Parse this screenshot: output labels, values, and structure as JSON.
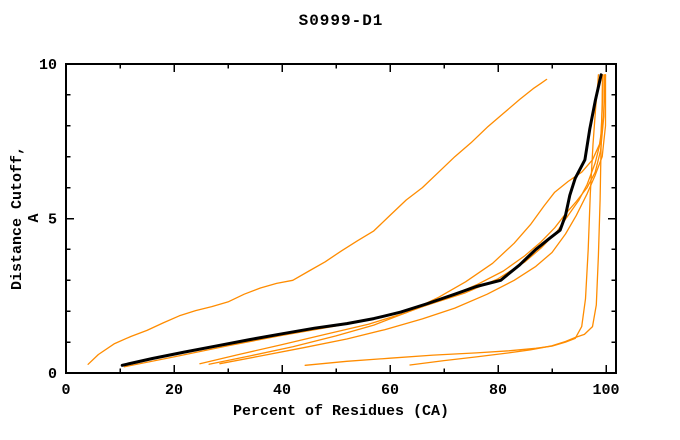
{
  "page": {
    "background": "#ffffff"
  },
  "chart_data": {
    "type": "line",
    "title": "S0999-D1",
    "xlabel": "Percent of Residues (CA)",
    "ylabel": "Distance Cutoff, A",
    "xlim": [
      0,
      100
    ],
    "ylim": [
      0,
      10
    ],
    "x_major_ticks": [
      0,
      20,
      40,
      60,
      80,
      100
    ],
    "x_minor_ticks": [
      10,
      30,
      50,
      70,
      90
    ],
    "y_major_ticks": [
      0,
      5,
      10
    ],
    "y_minor_ticks": [
      1,
      2,
      3,
      4,
      6,
      7,
      8,
      9
    ],
    "grid": false,
    "legend_position": "none",
    "frame_color": "#000000",
    "model_color": "#ff8c00",
    "highlight_color": "#000000",
    "series": [
      {
        "name": "model-a-high-arc",
        "color": "#ff8c00",
        "width": 1.3,
        "points": [
          [
            4.1,
            0.28
          ],
          [
            6,
            0.6
          ],
          [
            9,
            0.95
          ],
          [
            12,
            1.18
          ],
          [
            15,
            1.38
          ],
          [
            18,
            1.62
          ],
          [
            21,
            1.85
          ],
          [
            24,
            2.02
          ],
          [
            27,
            2.15
          ],
          [
            30,
            2.3
          ],
          [
            33,
            2.55
          ],
          [
            36,
            2.75
          ],
          [
            39,
            2.9
          ],
          [
            42,
            3.0
          ],
          [
            45,
            3.3
          ],
          [
            48,
            3.6
          ],
          [
            51,
            3.95
          ],
          [
            54,
            4.28
          ],
          [
            57,
            4.6
          ],
          [
            60,
            5.1
          ],
          [
            63,
            5.6
          ],
          [
            66,
            6.0
          ],
          [
            69,
            6.5
          ],
          [
            72,
            7.0
          ],
          [
            75,
            7.45
          ],
          [
            78,
            7.95
          ],
          [
            81,
            8.4
          ],
          [
            84,
            8.85
          ],
          [
            86.5,
            9.2
          ],
          [
            88,
            9.38
          ],
          [
            89,
            9.5
          ]
        ]
      },
      {
        "name": "model-b",
        "color": "#ff8c00",
        "width": 1.3,
        "points": [
          [
            10.8,
            0.2
          ],
          [
            20,
            0.52
          ],
          [
            30,
            0.88
          ],
          [
            40,
            1.22
          ],
          [
            50,
            1.52
          ],
          [
            58,
            1.78
          ],
          [
            66,
            2.15
          ],
          [
            74,
            2.6
          ],
          [
            80,
            3.05
          ],
          [
            85,
            3.6
          ],
          [
            88,
            4.05
          ],
          [
            91,
            4.6
          ],
          [
            93,
            5.1
          ],
          [
            95,
            5.6
          ],
          [
            96.5,
            6.1
          ],
          [
            98,
            6.8
          ],
          [
            99,
            7.5
          ],
          [
            99.3,
            8.5
          ],
          [
            99.4,
            9.65
          ]
        ]
      },
      {
        "name": "model-c",
        "color": "#ff8c00",
        "width": 1.3,
        "points": [
          [
            24.8,
            0.3
          ],
          [
            32,
            0.6
          ],
          [
            40,
            0.92
          ],
          [
            48,
            1.25
          ],
          [
            56,
            1.58
          ],
          [
            63,
            1.95
          ],
          [
            70,
            2.4
          ],
          [
            76,
            2.85
          ],
          [
            81,
            3.3
          ],
          [
            85,
            3.8
          ],
          [
            88,
            4.25
          ],
          [
            90.5,
            4.7
          ],
          [
            92.5,
            5.15
          ],
          [
            94.5,
            5.55
          ],
          [
            96.5,
            6.0
          ],
          [
            98,
            6.5
          ],
          [
            99,
            7.2
          ],
          [
            99.6,
            8.3
          ],
          [
            99.7,
            9.65
          ]
        ]
      },
      {
        "name": "model-d",
        "color": "#ff8c00",
        "width": 1.3,
        "points": [
          [
            26.5,
            0.28
          ],
          [
            34,
            0.55
          ],
          [
            42,
            0.85
          ],
          [
            50,
            1.2
          ],
          [
            57,
            1.55
          ],
          [
            63,
            1.95
          ],
          [
            69,
            2.45
          ],
          [
            74,
            2.95
          ],
          [
            79,
            3.55
          ],
          [
            83,
            4.2
          ],
          [
            86,
            4.8
          ],
          [
            88.5,
            5.4
          ],
          [
            90.5,
            5.85
          ],
          [
            93,
            6.2
          ],
          [
            95.5,
            6.5
          ],
          [
            97.5,
            6.9
          ],
          [
            98.8,
            7.4
          ],
          [
            99.5,
            8.2
          ],
          [
            99.8,
            9.1
          ],
          [
            99.9,
            9.65
          ]
        ]
      },
      {
        "name": "model-e",
        "color": "#ff8c00",
        "width": 1.3,
        "points": [
          [
            28.5,
            0.3
          ],
          [
            36,
            0.55
          ],
          [
            44,
            0.82
          ],
          [
            52,
            1.1
          ],
          [
            59,
            1.4
          ],
          [
            66,
            1.75
          ],
          [
            72,
            2.1
          ],
          [
            78,
            2.55
          ],
          [
            83,
            3.0
          ],
          [
            87,
            3.45
          ],
          [
            90,
            3.9
          ],
          [
            92.5,
            4.5
          ],
          [
            94.5,
            5.1
          ],
          [
            96.5,
            5.8
          ],
          [
            98,
            6.4
          ],
          [
            99.3,
            7.0
          ],
          [
            99.9,
            8.0
          ],
          [
            99.9,
            9.65
          ]
        ]
      },
      {
        "name": "model-f-low-flat",
        "color": "#ff8c00",
        "width": 1.3,
        "points": [
          [
            44.3,
            0.25
          ],
          [
            52,
            0.38
          ],
          [
            60,
            0.48
          ],
          [
            68,
            0.58
          ],
          [
            76,
            0.65
          ],
          [
            82,
            0.72
          ],
          [
            87,
            0.8
          ],
          [
            90,
            0.87
          ],
          [
            92.5,
            1.0
          ],
          [
            94.3,
            1.12
          ],
          [
            95.5,
            1.5
          ],
          [
            96.2,
            2.4
          ],
          [
            96.7,
            4.0
          ],
          [
            97.1,
            5.8
          ],
          [
            97.6,
            7.4
          ],
          [
            98.1,
            8.6
          ],
          [
            98.5,
            9.4
          ],
          [
            98.6,
            9.65
          ]
        ]
      },
      {
        "name": "model-g-low-flat",
        "color": "#ff8c00",
        "width": 1.3,
        "points": [
          [
            63.7,
            0.26
          ],
          [
            70,
            0.4
          ],
          [
            76,
            0.52
          ],
          [
            82,
            0.65
          ],
          [
            86,
            0.75
          ],
          [
            90,
            0.88
          ],
          [
            92.5,
            1.02
          ],
          [
            94.3,
            1.15
          ],
          [
            96,
            1.25
          ],
          [
            97.5,
            1.5
          ],
          [
            98.2,
            2.2
          ],
          [
            98.6,
            3.8
          ],
          [
            98.9,
            5.6
          ],
          [
            99.1,
            7.4
          ],
          [
            99.3,
            8.8
          ],
          [
            99.35,
            9.65
          ]
        ]
      },
      {
        "name": "highlighted-model",
        "color": "#000000",
        "width": 3,
        "points": [
          [
            10.4,
            0.25
          ],
          [
            16,
            0.47
          ],
          [
            22,
            0.68
          ],
          [
            28,
            0.88
          ],
          [
            34,
            1.08
          ],
          [
            40,
            1.27
          ],
          [
            46,
            1.45
          ],
          [
            52,
            1.6
          ],
          [
            57,
            1.76
          ],
          [
            62,
            1.97
          ],
          [
            67,
            2.25
          ],
          [
            72,
            2.55
          ],
          [
            76,
            2.8
          ],
          [
            80.5,
            3.0
          ],
          [
            84,
            3.5
          ],
          [
            87,
            4.0
          ],
          [
            89.5,
            4.35
          ],
          [
            91.5,
            4.62
          ],
          [
            92.5,
            5.1
          ],
          [
            93.3,
            5.75
          ],
          [
            94.3,
            6.3
          ],
          [
            96.1,
            6.9
          ],
          [
            97,
            7.9
          ],
          [
            98,
            8.8
          ],
          [
            98.9,
            9.5
          ],
          [
            99.1,
            9.65
          ]
        ]
      }
    ]
  }
}
